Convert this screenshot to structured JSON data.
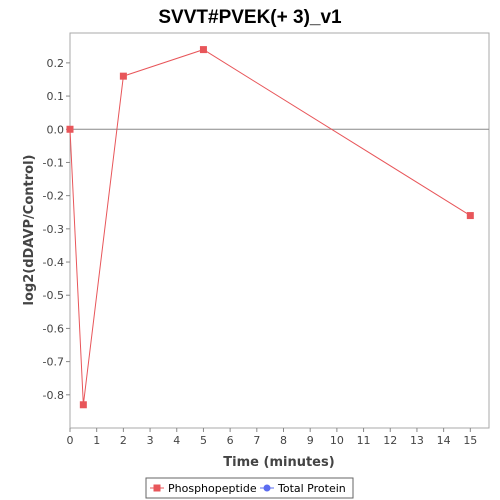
{
  "chart_data": {
    "type": "line",
    "title": "SVVT#PVEK(+ 3)_v1",
    "xlabel": "Time (minutes)",
    "ylabel": "log2(dDAVP/Control)",
    "xlim": [
      0,
      15.7
    ],
    "ylim": [
      -0.9,
      0.29
    ],
    "x_ticks": [
      0,
      1,
      2,
      3,
      4,
      5,
      6,
      7,
      8,
      9,
      10,
      11,
      12,
      13,
      14,
      15
    ],
    "x_tick_labels": [
      "0",
      "1",
      "2",
      "3",
      "4",
      "5",
      "6",
      "7",
      "8",
      "9",
      "10",
      "11",
      "12",
      "13",
      "14",
      "15"
    ],
    "y_ticks": [
      0.2,
      0.1,
      0.0,
      -0.1,
      -0.2,
      -0.3,
      -0.4,
      -0.5,
      -0.6,
      -0.7,
      -0.8
    ],
    "y_tick_labels": [
      "0.2",
      "0.1",
      "0.0",
      "-0.1",
      "-0.2",
      "-0.3",
      "-0.4",
      "-0.5",
      "-0.6",
      "-0.7",
      "-0.8"
    ],
    "zero_line": true,
    "grid": false,
    "legend_position": "bottom",
    "series": [
      {
        "name": "Phosphopeptide",
        "color": "#e8565a",
        "marker": "square",
        "x": [
          0,
          0.5,
          2,
          5,
          15
        ],
        "y": [
          0.0,
          -0.83,
          0.16,
          0.24,
          -0.26
        ]
      },
      {
        "name": "Total Protein",
        "color": "#5b6cf0",
        "marker": "circle",
        "x": [],
        "y": []
      }
    ]
  }
}
